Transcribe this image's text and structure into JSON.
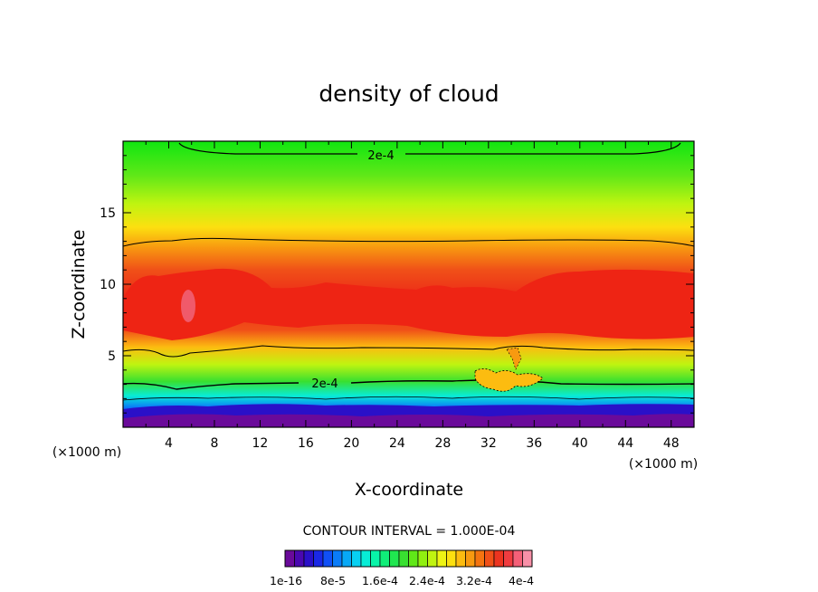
{
  "chart_data": {
    "type": "heatmap",
    "title": "density of cloud",
    "xlabel": "X-coordinate",
    "ylabel": "Z-coordinate",
    "x_unit": "(×1000 m)",
    "y_unit": "(×1000 m)",
    "xlim": [
      0,
      50
    ],
    "ylim": [
      0,
      20
    ],
    "x_ticks": [
      "4",
      "8",
      "12",
      "16",
      "20",
      "24",
      "28",
      "32",
      "36",
      "40",
      "44",
      "48"
    ],
    "y_ticks": [
      "5",
      "10",
      "15"
    ],
    "contour_interval_text": "CONTOUR INTERVAL = 1.000E-04",
    "contour_labels": [
      "2e-4",
      "2e-4"
    ],
    "colorbar_labels": [
      "1e-16",
      "8e-5",
      "1.6e-4",
      "2.4e-4",
      "3.2e-4",
      "4e-4"
    ],
    "colorbar_range": [
      0,
      0.00044
    ],
    "colorbar_colors": [
      "#6a0a9a",
      "#4a08b0",
      "#2a10c8",
      "#1a28e6",
      "#1050f6",
      "#0a7cf8",
      "#08a8f6",
      "#08d0f2",
      "#08ecd6",
      "#08f4a8",
      "#10ee78",
      "#20e650",
      "#38e030",
      "#60e818",
      "#90f010",
      "#c0f410",
      "#eef414",
      "#fce010",
      "#fcbc10",
      "#f89a10",
      "#f47410",
      "#f05018",
      "#ec3420",
      "#f03c40",
      "#f46078",
      "#f890a8"
    ]
  }
}
